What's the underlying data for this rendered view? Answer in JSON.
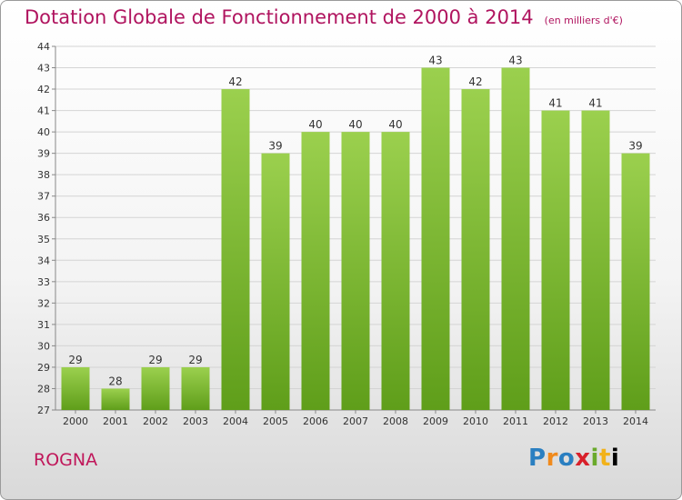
{
  "title": "Dotation Globale de Fonctionnement de 2000 à 2014",
  "subtitle": "(en milliers d'€)",
  "commune": "ROGNA",
  "logo": {
    "letters": [
      "P",
      "r",
      "o",
      "x",
      "i",
      "t",
      "i"
    ]
  },
  "colors": {
    "bar": "#8cc63f",
    "bar_dark": "#5f9e1a",
    "title": "#b0145f"
  },
  "chart_data": {
    "type": "bar",
    "title": "Dotation Globale de Fonctionnement de 2000 à 2014",
    "subtitle": "(en milliers d'€)",
    "categories": [
      "2000",
      "2001",
      "2002",
      "2003",
      "2004",
      "2005",
      "2006",
      "2007",
      "2008",
      "2009",
      "2010",
      "2011",
      "2012",
      "2013",
      "2014"
    ],
    "values": [
      29,
      28,
      29,
      29,
      42,
      39,
      40,
      40,
      40,
      43,
      42,
      43,
      41,
      41,
      39
    ],
    "ylim": [
      27,
      44
    ],
    "yticks": [
      27,
      28,
      29,
      30,
      31,
      32,
      33,
      34,
      35,
      36,
      37,
      38,
      39,
      40,
      41,
      42,
      43,
      44
    ],
    "grid": true,
    "legend": "none"
  }
}
